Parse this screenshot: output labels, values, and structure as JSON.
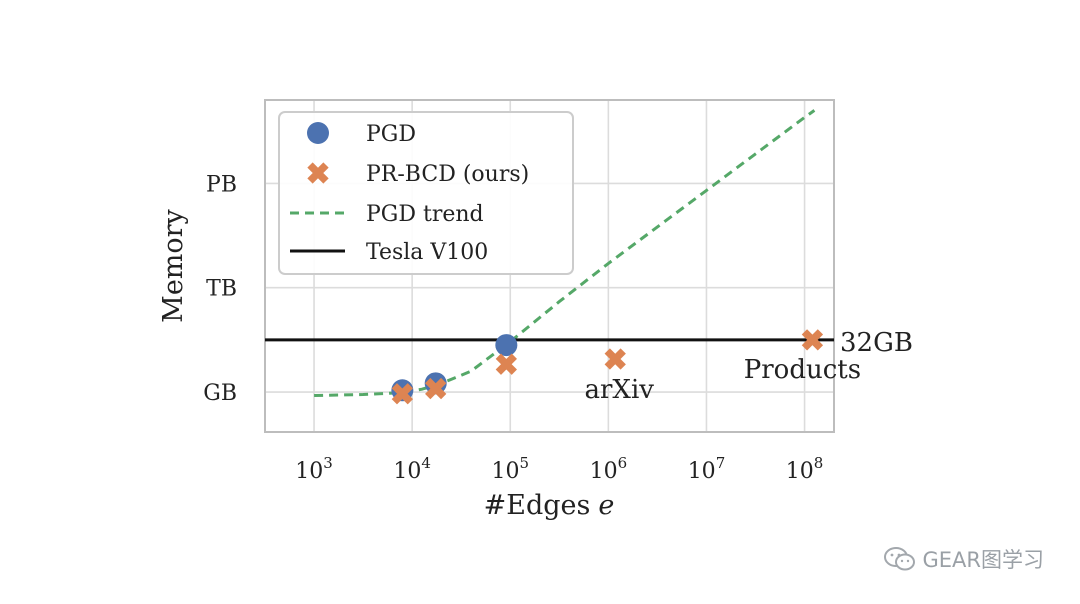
{
  "chart_data": {
    "type": "scatter",
    "xlabel": "#Edges",
    "xlabel_var": "e",
    "ylabel": "Memory",
    "x_scale": "log10",
    "xlim": [
      2.5,
      8.3
    ],
    "ylim": [
      -1.15,
      8.4
    ],
    "x_ticks": [
      {
        "value": 3,
        "base": "10",
        "exp": "3"
      },
      {
        "value": 4,
        "base": "10",
        "exp": "4"
      },
      {
        "value": 5,
        "base": "10",
        "exp": "5"
      },
      {
        "value": 6,
        "base": "10",
        "exp": "6"
      },
      {
        "value": 7,
        "base": "10",
        "exp": "7"
      },
      {
        "value": 8,
        "base": "10",
        "exp": "8"
      }
    ],
    "y_ticks": [
      {
        "value": 0,
        "label": "GB"
      },
      {
        "value": 3,
        "label": "TB"
      },
      {
        "value": 6,
        "label": "PB"
      }
    ],
    "grid": true,
    "legend_position": "top-left",
    "series": [
      {
        "name": "PGD",
        "kind": "marker-circle",
        "color": "#4c72b0",
        "points": [
          {
            "x": 3.9,
            "y": 0.05
          },
          {
            "x": 4.24,
            "y": 0.25
          },
          {
            "x": 4.96,
            "y": 1.35
          }
        ]
      },
      {
        "name": "PR-BCD (ours)",
        "kind": "marker-x",
        "color": "#dd8452",
        "points": [
          {
            "x": 3.9,
            "y": -0.05
          },
          {
            "x": 4.24,
            "y": 0.1
          },
          {
            "x": 4.96,
            "y": 0.8
          },
          {
            "x": 6.07,
            "y": 0.95
          },
          {
            "x": 8.08,
            "y": 1.5
          }
        ]
      },
      {
        "name": "PGD trend",
        "kind": "dashed-line",
        "color": "#55a868",
        "points": [
          {
            "x": 3.0,
            "y": -0.1
          },
          {
            "x": 3.5,
            "y": -0.07
          },
          {
            "x": 3.9,
            "y": -0.02
          },
          {
            "x": 4.1,
            "y": 0.08
          },
          {
            "x": 4.3,
            "y": 0.25
          },
          {
            "x": 4.6,
            "y": 0.6
          },
          {
            "x": 5.0,
            "y": 1.45
          },
          {
            "x": 5.5,
            "y": 2.6
          },
          {
            "x": 6.0,
            "y": 3.7
          },
          {
            "x": 6.5,
            "y": 4.75
          },
          {
            "x": 7.0,
            "y": 5.8
          },
          {
            "x": 7.5,
            "y": 6.85
          },
          {
            "x": 8.0,
            "y": 7.9
          },
          {
            "x": 8.1,
            "y": 8.1
          }
        ]
      },
      {
        "name": "Tesla V100",
        "kind": "hline",
        "color": "#111111",
        "y": 1.5
      }
    ],
    "annotations": [
      {
        "text": "32GB",
        "x": 8.3,
        "y": 1.5,
        "note": "label right of V100 line"
      },
      {
        "text": "arXiv",
        "x": 6.07,
        "y": 0.95
      },
      {
        "text": "Products",
        "x": 8.08,
        "y": 1.5
      }
    ]
  },
  "watermark": {
    "text": "GEAR图学习"
  }
}
